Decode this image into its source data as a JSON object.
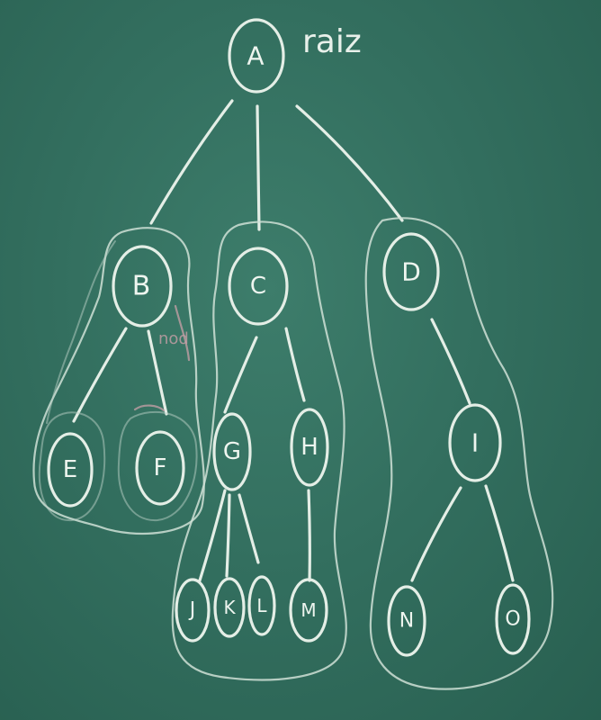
{
  "board": {
    "root_note": "raiz",
    "side_note": "nod"
  },
  "nodes": {
    "A": "A",
    "B": "B",
    "C": "C",
    "D": "D",
    "E": "E",
    "F": "F",
    "G": "G",
    "H": "H",
    "I": "I",
    "J": "J",
    "K": "K",
    "L": "L",
    "M": "M",
    "N": "N",
    "O": "O"
  },
  "colors": {
    "board": "#2e6a5a",
    "chalk": "#e4eee6"
  }
}
